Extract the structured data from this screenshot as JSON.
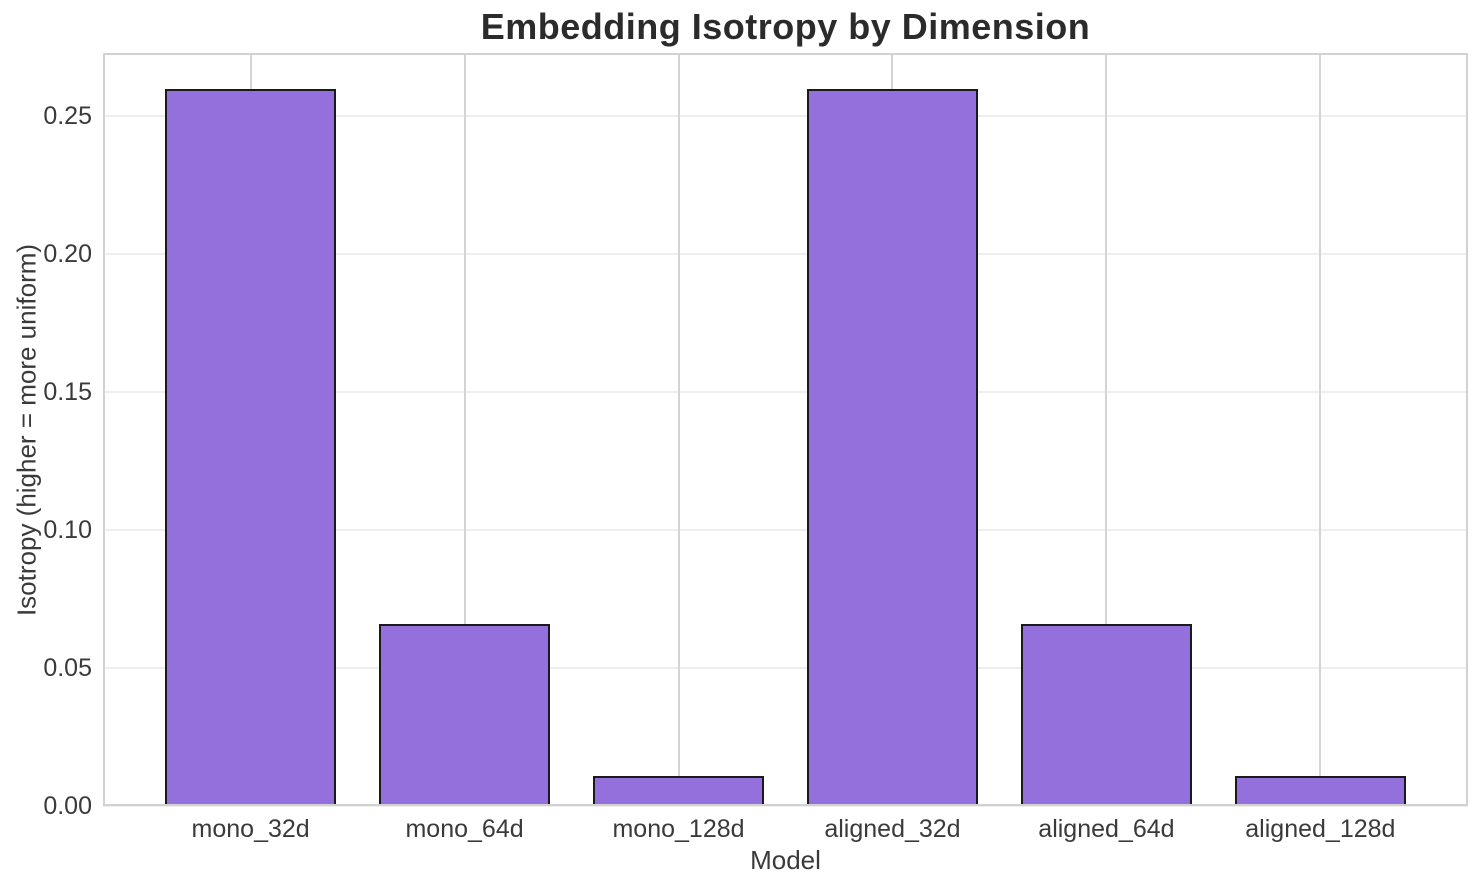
{
  "chart_data": {
    "type": "bar",
    "title": "Embedding Isotropy by Dimension",
    "xlabel": "Model",
    "ylabel": "Isotropy (higher = more uniform)",
    "categories": [
      "mono_32d",
      "mono_64d",
      "mono_128d",
      "aligned_32d",
      "aligned_64d",
      "aligned_128d"
    ],
    "values": [
      0.26,
      0.066,
      0.011,
      0.26,
      0.066,
      0.011
    ],
    "ylim": [
      0,
      0.273
    ],
    "xlim": [
      -0.69,
      5.69
    ],
    "bar_width": 0.8,
    "yticks": [
      0,
      0.05,
      0.1,
      0.15,
      0.2,
      0.25
    ],
    "ytick_labels": [
      "0.00",
      "0.05",
      "0.10",
      "0.15",
      "0.20",
      "0.25"
    ],
    "grid": "on",
    "legend": "none",
    "colors": {
      "bar_fill": "#9370DB",
      "bar_edge": "#1a1a1a",
      "grid_horizontal": "#eeeeee",
      "grid_vertical": "#d4d4d4",
      "spine": "#d2d2d2",
      "title_text": "#2b2b2b",
      "label_text": "#3a3a3a"
    }
  }
}
